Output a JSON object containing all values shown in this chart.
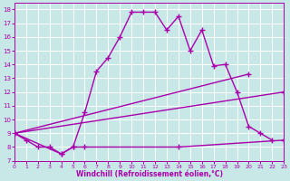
{
  "xlabel": "Windchill (Refroidissement éolien,°C)",
  "background_color": "#c8e8e8",
  "line_color": "#aa00aa",
  "grid_color": "#ffffff",
  "line1_x": [
    0,
    1,
    2,
    3,
    4,
    5,
    6,
    7,
    8,
    9,
    10,
    11,
    12,
    13,
    14,
    15,
    16,
    17,
    18,
    19,
    20,
    21,
    22
  ],
  "line1_y": [
    9,
    8.5,
    8,
    8,
    7.5,
    8,
    10.5,
    13.5,
    14.5,
    16.0,
    17.8,
    17.8,
    17.8,
    16.5,
    17.5,
    15.0,
    16.5,
    13.9,
    14.0,
    12.0,
    9.5,
    9.0,
    8.5
  ],
  "line2_x": [
    0,
    20
  ],
  "line2_y": [
    9,
    13.3
  ],
  "line3_x": [
    0,
    23
  ],
  "line3_y": [
    9,
    12.0
  ],
  "line4_x": [
    0,
    4,
    5,
    6,
    14,
    23
  ],
  "line4_y": [
    9,
    7.5,
    8.0,
    8.0,
    8.0,
    8.5
  ],
  "xlim": [
    0,
    23
  ],
  "ylim": [
    7,
    18.5
  ],
  "xticks": [
    0,
    1,
    2,
    3,
    4,
    5,
    6,
    7,
    8,
    9,
    10,
    11,
    12,
    13,
    14,
    15,
    16,
    17,
    18,
    19,
    20,
    21,
    22,
    23
  ],
  "yticks": [
    7,
    8,
    9,
    10,
    11,
    12,
    13,
    14,
    15,
    16,
    17,
    18
  ]
}
